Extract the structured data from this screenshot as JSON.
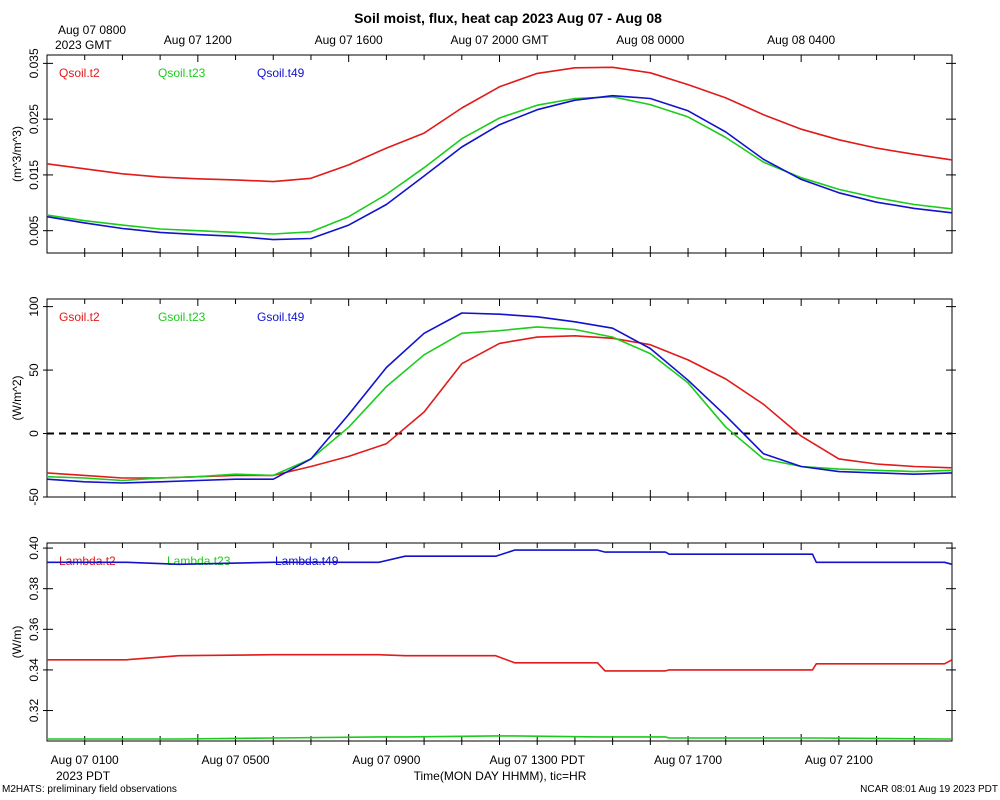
{
  "title": "Soil moist, flux, heat cap 2023 Aug 07 - Aug 08",
  "top_axis": {
    "first_label_line1": "Aug 07 0800",
    "first_label_line2": "2023 GMT",
    "labels": [
      "Aug 07 1200",
      "Aug 07 1600",
      "Aug 07 2000 GMT",
      "Aug 08 0000",
      "Aug 08 0400"
    ]
  },
  "bottom_axis": {
    "labels": [
      "Aug 07 0100",
      "Aug 07 0500",
      "Aug 07 0900",
      "Aug 07 1300 PDT",
      "Aug 07 1700",
      "Aug 07 2100"
    ],
    "tz_label": "2023 PDT",
    "xlabel": "Time(MON DAY HHMM), tic=HR"
  },
  "footer": {
    "left": "M2HATS: preliminary field observations",
    "right": "NCAR 08:01 Aug 19 2023 PDT"
  },
  "colors": {
    "red": "#e11a1a",
    "green": "#1ccc1c",
    "blue": "#1212cc"
  },
  "chart_data": [
    {
      "type": "line",
      "ylabel": "(m^3/m^3)",
      "ylim": [
        0.001,
        0.0365
      ],
      "yticks": [
        0.005,
        0.015,
        0.025,
        0.035
      ],
      "ytick_labels": [
        "0.005",
        "0.015",
        "0.025",
        "0.035"
      ],
      "x": [
        0,
        1,
        2,
        3,
        4,
        5,
        6,
        7,
        8,
        9,
        10,
        11,
        12,
        13,
        14,
        15,
        16,
        17,
        18,
        19,
        20,
        21,
        22,
        23,
        24
      ],
      "series": [
        {
          "name": "Qsoil.t2",
          "color": "#e11a1a",
          "values": [
            0.017,
            0.0161,
            0.0152,
            0.0146,
            0.0143,
            0.0141,
            0.0138,
            0.0144,
            0.0168,
            0.0198,
            0.0225,
            0.027,
            0.0308,
            0.0332,
            0.0342,
            0.0343,
            0.0333,
            0.0312,
            0.0288,
            0.0258,
            0.0232,
            0.0213,
            0.0198,
            0.0187,
            0.0177
          ]
        },
        {
          "name": "Qsoil.t23",
          "color": "#1ccc1c",
          "values": [
            0.0078,
            0.0068,
            0.006,
            0.0053,
            0.005,
            0.0047,
            0.0044,
            0.0048,
            0.0075,
            0.0115,
            0.0163,
            0.0215,
            0.0252,
            0.0275,
            0.0287,
            0.029,
            0.0276,
            0.0254,
            0.0217,
            0.0173,
            0.0145,
            0.0124,
            0.0109,
            0.0097,
            0.0089
          ]
        },
        {
          "name": "Qsoil.t49",
          "color": "#1212cc",
          "values": [
            0.0075,
            0.0064,
            0.0054,
            0.0047,
            0.0043,
            0.004,
            0.0034,
            0.0036,
            0.006,
            0.0097,
            0.0148,
            0.02,
            0.024,
            0.0267,
            0.0284,
            0.0292,
            0.0287,
            0.0265,
            0.0227,
            0.0178,
            0.0142,
            0.0118,
            0.0101,
            0.009,
            0.0082
          ]
        }
      ]
    },
    {
      "type": "line",
      "ylabel": "(W/m^2)",
      "ylim": [
        -50,
        106
      ],
      "yticks": [
        -50,
        0,
        50,
        100
      ],
      "ytick_labels": [
        "-50",
        "0",
        "50",
        "100"
      ],
      "zero_line": 0,
      "x": [
        0,
        1,
        2,
        3,
        4,
        5,
        6,
        7,
        8,
        9,
        10,
        11,
        12,
        13,
        14,
        15,
        16,
        17,
        18,
        19,
        20,
        21,
        22,
        23,
        24
      ],
      "series": [
        {
          "name": "Gsoil.t2",
          "color": "#e11a1a",
          "values": [
            -31,
            -33,
            -35,
            -35,
            -34,
            -33,
            -33,
            -26,
            -18,
            -8,
            17,
            55,
            71,
            76,
            77,
            75,
            70,
            58,
            43,
            23,
            -2,
            -20,
            -24,
            -26,
            -27
          ]
        },
        {
          "name": "Gsoil.t23",
          "color": "#1ccc1c",
          "values": [
            -34,
            -35,
            -37,
            -35,
            -34,
            -32,
            -33,
            -20,
            5,
            37,
            62,
            79,
            81,
            84,
            82,
            76,
            63,
            40,
            5,
            -20,
            -26,
            -28,
            -29,
            -30,
            -29
          ]
        },
        {
          "name": "Gsoil.t49",
          "color": "#1212cc",
          "values": [
            -36,
            -38,
            -39,
            -38,
            -37,
            -36,
            -36,
            -20,
            15,
            52,
            79,
            95,
            94,
            92,
            88,
            83,
            67,
            42,
            14,
            -16,
            -26,
            -30,
            -31,
            -32,
            -31
          ]
        }
      ]
    },
    {
      "type": "line",
      "ylabel": "(W/m)",
      "ylim": [
        0.305,
        0.4025
      ],
      "yticks": [
        0.32,
        0.34,
        0.36,
        0.38,
        0.4
      ],
      "ytick_labels": [
        "0.32",
        "0.34",
        "0.36",
        "0.38",
        "0.40"
      ],
      "x": [
        0,
        2.1,
        3.5,
        6,
        8.8,
        9.5,
        11.9,
        12.4,
        14.6,
        14.8,
        16.4,
        16.5,
        20.3,
        20.4,
        23.8,
        24
      ],
      "series": [
        {
          "name": "Lambda.t2",
          "color": "#e11a1a",
          "values": [
            0.345,
            0.345,
            0.347,
            0.3475,
            0.3475,
            0.347,
            0.347,
            0.3435,
            0.3435,
            0.3395,
            0.3395,
            0.34,
            0.34,
            0.343,
            0.343,
            0.345
          ]
        },
        {
          "name": "Lambda.t23",
          "color": "#1ccc1c",
          "values": [
            0.306,
            0.306,
            0.306,
            0.3065,
            0.307,
            0.307,
            0.3075,
            0.3075,
            0.307,
            0.307,
            0.307,
            0.3065,
            0.3065,
            0.3065,
            0.306,
            0.306
          ]
        },
        {
          "name": "Lambda.t49",
          "color": "#1212cc",
          "values": [
            0.393,
            0.393,
            0.392,
            0.393,
            0.393,
            0.396,
            0.396,
            0.399,
            0.399,
            0.398,
            0.398,
            0.397,
            0.397,
            0.393,
            0.393,
            0.392
          ]
        }
      ]
    }
  ]
}
